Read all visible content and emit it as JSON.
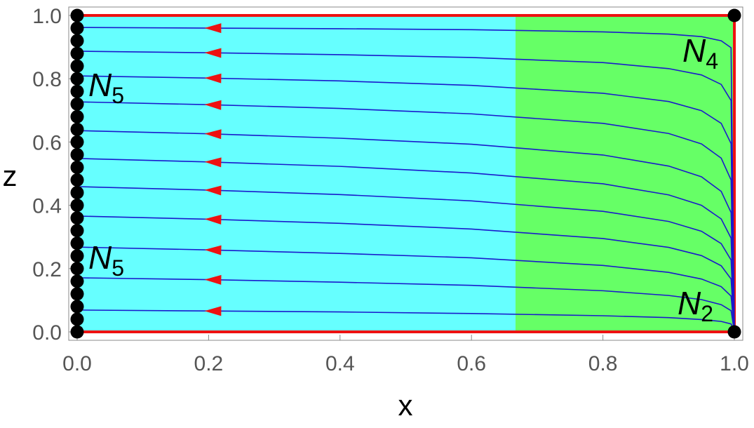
{
  "chart_data": {
    "type": "phase-portrait",
    "x_label": "x",
    "y_label": "z",
    "xlim": [
      0,
      1
    ],
    "ylim": [
      0,
      1
    ],
    "xticks": [
      {
        "value": 0,
        "label": "0.0"
      },
      0.2,
      0.4,
      0.6,
      0.8,
      {
        "value": 1,
        "label": "1.0"
      }
    ],
    "yticks": [
      {
        "value": 0,
        "label": "0.0"
      },
      0.2,
      0.4,
      0.6,
      0.8,
      {
        "value": 1,
        "label": "1.0"
      }
    ],
    "regions": [
      {
        "x": [
          0,
          0.667
        ],
        "color": "#66ffff"
      },
      {
        "x": [
          0.667,
          1
        ],
        "color": "#66ff66"
      }
    ],
    "boundary_color": "#ee1111",
    "line_color": "#1a1acc",
    "arrow_color": "#ee1111",
    "x": [
      0,
      0.2,
      0.4,
      0.6,
      0.8,
      0.9,
      0.95,
      0.98,
      0.995,
      1
    ],
    "series": [
      {
        "values": [
          0.069,
          0.066,
          0.063,
          0.058,
          0.051,
          0.045,
          0.039,
          0.033,
          0.025,
          0
        ]
      },
      {
        "values": [
          0.171,
          0.165,
          0.157,
          0.147,
          0.13,
          0.115,
          0.102,
          0.086,
          0.067,
          0
        ]
      },
      {
        "values": [
          0.268,
          0.259,
          0.248,
          0.234,
          0.21,
          0.188,
          0.167,
          0.143,
          0.113,
          0
        ]
      },
      {
        "values": [
          0.366,
          0.356,
          0.343,
          0.325,
          0.295,
          0.267,
          0.241,
          0.209,
          0.167,
          0
        ]
      },
      {
        "values": [
          0.459,
          0.448,
          0.434,
          0.414,
          0.381,
          0.349,
          0.318,
          0.279,
          0.227,
          0
        ]
      },
      {
        "values": [
          0.548,
          0.537,
          0.523,
          0.502,
          0.468,
          0.433,
          0.4,
          0.357,
          0.296,
          0
        ]
      },
      {
        "values": [
          0.636,
          0.626,
          0.612,
          0.593,
          0.559,
          0.524,
          0.49,
          0.444,
          0.377,
          0
        ]
      },
      {
        "values": [
          0.727,
          0.718,
          0.706,
          0.689,
          0.659,
          0.627,
          0.594,
          0.549,
          0.48,
          0
        ]
      },
      {
        "values": [
          0.809,
          0.802,
          0.793,
          0.779,
          0.754,
          0.728,
          0.699,
          0.659,
          0.595,
          0
        ]
      },
      {
        "values": [
          0.887,
          0.882,
          0.876,
          0.867,
          0.851,
          0.832,
          0.812,
          0.782,
          0.731,
          0
        ]
      },
      {
        "values": [
          0.962,
          0.96,
          0.958,
          0.955,
          0.948,
          0.941,
          0.933,
          0.92,
          0.898,
          0
        ]
      }
    ],
    "points": {
      "x": [
        0,
        0,
        0,
        0,
        0,
        0,
        0,
        0,
        0,
        0,
        0,
        0,
        0,
        0,
        0,
        0,
        0,
        0,
        0,
        0,
        0,
        0,
        0,
        0,
        0,
        0,
        1,
        1
      ],
      "z": [
        0,
        0.04,
        0.08,
        0.12,
        0.16,
        0.2,
        0.24,
        0.28,
        0.32,
        0.36,
        0.4,
        0.44,
        0.48,
        0.52,
        0.56,
        0.6,
        0.64,
        0.68,
        0.72,
        0.76,
        0.8,
        0.84,
        0.88,
        0.92,
        0.96,
        1,
        1,
        0
      ],
      "color": "#000000"
    },
    "annotations": [
      {
        "text": "N",
        "subscript": "5"
      },
      {
        "text": "N",
        "subscript": "5"
      },
      {
        "text": "N",
        "subscript": "4"
      },
      {
        "text": "N",
        "subscript": "2"
      }
    ]
  }
}
